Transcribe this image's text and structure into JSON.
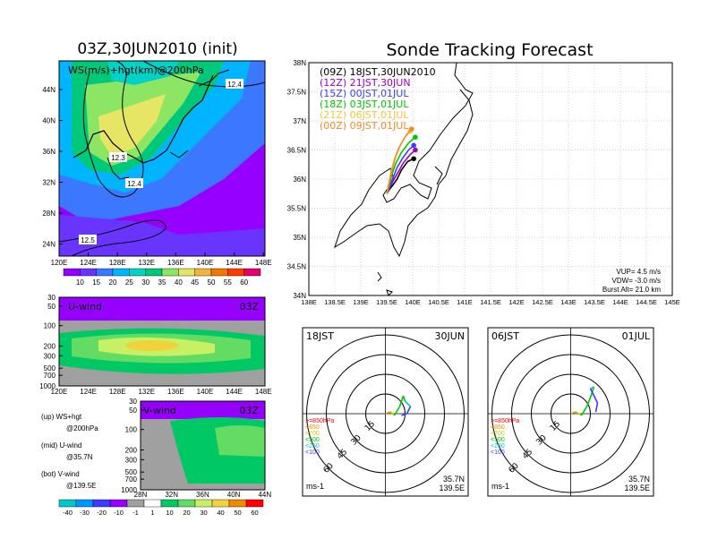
{
  "titles": {
    "left": "03Z,30JUN2010 (init)",
    "right": "Sonde Tracking Forecast"
  },
  "colors": {
    "ws_scale": [
      "#9600ff",
      "#6a34ff",
      "#3c78ff",
      "#00b4ff",
      "#00d2c8",
      "#00c87a",
      "#8ce664",
      "#e6e664",
      "#f0b43c",
      "#f07800",
      "#ff3c00",
      "#e6006e"
    ],
    "uv_scale": [
      "#00c8c8",
      "#0096ff",
      "#3c3cff",
      "#9600ff",
      "#a0a0a0",
      "#ffffff",
      "#00c864",
      "#64dc64",
      "#c8f064",
      "#f0d23c",
      "#f08c00",
      "#ff0000"
    ]
  },
  "ws_panel": {
    "label": "WS(m/s)+hgt(km)@200hPa",
    "contours": [
      "12.4",
      "12.3",
      "12.4",
      "12.5"
    ],
    "lat_ticks": [
      "44N",
      "40N",
      "36N",
      "32N",
      "28N",
      "24N"
    ],
    "lon_ticks": [
      "120E",
      "124E",
      "128E",
      "132E",
      "136E",
      "140E",
      "144E",
      "148E"
    ],
    "cbar_labels": [
      "10",
      "15",
      "20",
      "25",
      "30",
      "35",
      "40",
      "45",
      "50",
      "55",
      "60"
    ]
  },
  "u_panel": {
    "label": "U-wind",
    "time": "03Z",
    "p_ticks": [
      "30",
      "50",
      "100",
      "200",
      "300",
      "500",
      "700",
      "1000"
    ],
    "lon_ticks": [
      "120E",
      "124E",
      "128E",
      "132E",
      "136E",
      "140E",
      "144E",
      "148E"
    ]
  },
  "v_panel": {
    "label": "V-wind",
    "time": "03Z",
    "p_ticks": [
      "30",
      "50",
      "100",
      "200",
      "300",
      "500",
      "700",
      "1000"
    ],
    "lat_ticks": [
      "28N",
      "32N",
      "36N",
      "40N",
      "44N"
    ],
    "cbar_labels": [
      "-40",
      "-30",
      "-20",
      "-10",
      "-1",
      "1",
      "10",
      "20",
      "30",
      "40",
      "50",
      "60"
    ]
  },
  "legend_notes": [
    {
      "a": "(up) WS+hgt",
      "b": "@200hPa"
    },
    {
      "a": "(mid) U-wind",
      "b": "@35.7N"
    },
    {
      "a": "(bot) V-wind",
      "b": "@139.5E"
    }
  ],
  "chart_data": {
    "type": "line",
    "title": "Sonde Tracking Forecast",
    "xlabel": "",
    "ylabel": "",
    "xlim": [
      138,
      145
    ],
    "ylim": [
      34,
      38
    ],
    "x_ticks": [
      "138E",
      "138.5E",
      "139E",
      "139.5E",
      "140E",
      "140.5E",
      "141E",
      "141.5E",
      "142E",
      "142.5E",
      "143E",
      "143.5E",
      "144E",
      "144.5E",
      "145E"
    ],
    "y_ticks": [
      "34N",
      "34.5N",
      "35N",
      "35.5N",
      "36N",
      "36.5N",
      "37N",
      "37.5N",
      "38N"
    ],
    "legend": [
      {
        "text": "(09Z)  18JST,30JUN2010",
        "color": "#000000"
      },
      {
        "text": "(12Z)  21JST,30JUN",
        "color": "#a000c8"
      },
      {
        "text": "(15Z)  00JST,01JUL",
        "color": "#3c3cff"
      },
      {
        "text": "(18Z)  03JST,01JUL",
        "color": "#00c800"
      },
      {
        "text": "(21Z)  06JST,01JUL",
        "color": "#f0c83c"
      },
      {
        "text": "(00Z)  09JST,01JUL",
        "color": "#f08c28"
      }
    ],
    "series": [
      {
        "name": "(09Z)  18JST,30JUN2010",
        "color": "#000000",
        "x": [
          139.5,
          139.55,
          139.62,
          139.7,
          139.78,
          139.9,
          140.02
        ],
        "y": [
          35.75,
          35.82,
          35.9,
          36.0,
          36.15,
          36.3,
          36.35
        ]
      },
      {
        "name": "(12Z)  21JST,30JUN",
        "color": "#a000c8",
        "x": [
          139.5,
          139.56,
          139.63,
          139.72,
          139.82,
          139.95,
          140.05
        ],
        "y": [
          35.75,
          35.85,
          35.98,
          36.12,
          36.28,
          36.42,
          36.5
        ]
      },
      {
        "name": "(15Z)  00JST,01JUL",
        "color": "#3c3cff",
        "x": [
          139.5,
          139.56,
          139.62,
          139.7,
          139.8,
          139.92,
          140.02
        ],
        "y": [
          35.75,
          35.88,
          36.02,
          36.2,
          36.35,
          36.5,
          36.58
        ]
      },
      {
        "name": "(18Z)  03JST,01JUL",
        "color": "#00c800",
        "x": [
          139.5,
          139.55,
          139.6,
          139.68,
          139.78,
          139.92,
          140.05
        ],
        "y": [
          35.75,
          35.9,
          36.08,
          36.28,
          36.45,
          36.62,
          36.72
        ]
      },
      {
        "name": "(21Z)  06JST,01JUL",
        "color": "#f0c83c",
        "x": [
          139.5,
          139.54,
          139.58,
          139.65,
          139.74,
          139.85,
          139.95
        ],
        "y": [
          35.75,
          35.92,
          36.12,
          36.35,
          36.55,
          36.72,
          36.82
        ]
      },
      {
        "name": "(00Z)  09JST,01JUL",
        "color": "#f08c28",
        "x": [
          139.5,
          139.55,
          139.6,
          139.67,
          139.76,
          139.88,
          139.98
        ],
        "y": [
          35.75,
          35.95,
          36.15,
          36.38,
          36.58,
          36.76,
          36.86
        ]
      }
    ],
    "info": [
      "VUP=  4.5 m/s",
      "VDW= -3.0 m/s",
      "Burst Alt=  21.0 km"
    ]
  },
  "hodo_left": {
    "label": "18JST",
    "date": "30JUN",
    "rings": [
      "15",
      "30",
      "45",
      "60"
    ],
    "levels": [
      ">=850hPa",
      "<850",
      "<700",
      "<500",
      "<250",
      "<100"
    ],
    "level_colors": [
      "#ff0000",
      "#f08c00",
      "#c8c800",
      "#00c800",
      "#00c8c8",
      "#3c3cff"
    ],
    "unit": "ms-1",
    "lat": "35.7N",
    "lon": "139.5E"
  },
  "hodo_right": {
    "label": "06JST",
    "date": "01JUL",
    "rings": [
      "15",
      "30",
      "45",
      "60"
    ],
    "levels": [
      ">=850hPa",
      "<850",
      "<700",
      "<500",
      "<250",
      "<100"
    ],
    "level_colors": [
      "#ff0000",
      "#f08c00",
      "#c8c800",
      "#00c800",
      "#00c8c8",
      "#3c3cff"
    ],
    "unit": "ms-1",
    "lat": "35.7N",
    "lon": "139.5E"
  }
}
